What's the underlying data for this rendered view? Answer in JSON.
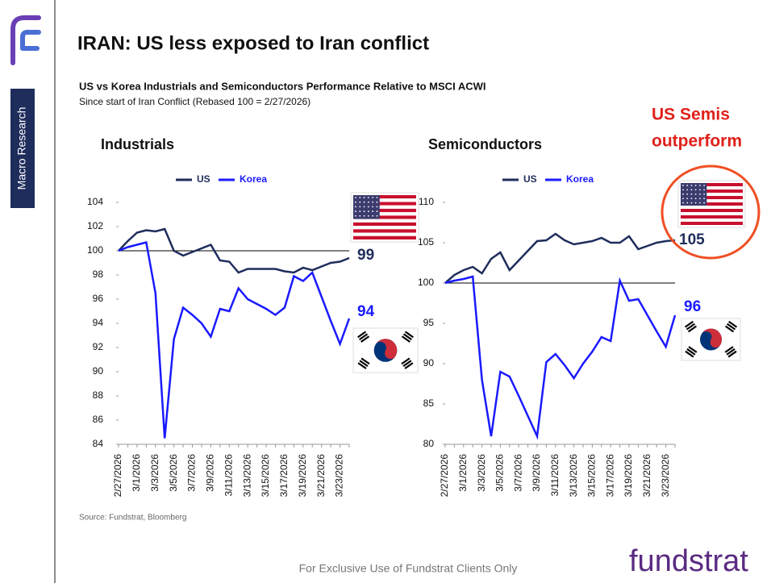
{
  "header": {
    "title": "IRAN: US less exposed to Iran conflict",
    "subtitle": "US vs Korea Industrials and Semiconductors Performance Relative to MSCI ACWI",
    "note": "Since start of Iran Conflict (Rebased 100 = 2/27/2026)"
  },
  "sidebar": "Macro Research",
  "callout": [
    "US Semis",
    "outperform"
  ],
  "source": "Source: Fundstrat, Bloomberg",
  "footer": "For Exclusive Use of Fundstrat Clients Only",
  "brand": "fundstrat",
  "chart_data": [
    {
      "type": "line",
      "title": "Industrials",
      "categories": [
        "2/27/2026",
        null,
        "3/1/2026",
        null,
        "3/3/2026",
        null,
        "3/5/2026",
        null,
        "3/7/2026",
        null,
        "3/9/2026",
        null,
        "3/11/2026",
        null,
        "3/13/2026",
        null,
        "3/15/2026",
        null,
        "3/17/2026",
        null,
        "3/19/2026",
        null,
        "3/21/2026",
        null,
        "3/23/2026",
        null
      ],
      "series": [
        {
          "name": "US",
          "color": "#1f2d5c",
          "values": [
            100,
            100.8,
            101.5,
            101.7,
            101.6,
            101.8,
            100,
            99.6,
            99.9,
            100.2,
            100.5,
            99.2,
            99.1,
            98.2,
            98.5,
            98.5,
            98.5,
            98.5,
            98.3,
            98.2,
            98.6,
            98.4,
            98.7,
            99.0,
            99.1,
            99.4
          ],
          "end_label": "99"
        },
        {
          "name": "Korea",
          "color": "#1a1aff",
          "values": [
            100,
            100.3,
            100.5,
            100.7,
            96.5,
            84.5,
            92.7,
            95.3,
            94.7,
            94.0,
            92.9,
            95.2,
            95.0,
            96.9,
            96.0,
            95.6,
            95.2,
            94.7,
            95.3,
            97.9,
            97.5,
            98.2,
            96.2,
            94.2,
            92.3,
            94.4
          ],
          "end_label": "94"
        }
      ],
      "ylim": [
        84,
        104
      ],
      "yticks": [
        84,
        86,
        88,
        90,
        92,
        94,
        96,
        98,
        100,
        102,
        104
      ],
      "hline": 100
    },
    {
      "type": "line",
      "title": "Semiconductors",
      "categories": [
        "2/27/2026",
        null,
        "3/1/2026",
        null,
        "3/3/2026",
        null,
        "3/5/2026",
        null,
        "3/7/2026",
        null,
        "3/9/2026",
        null,
        "3/11/2026",
        null,
        "3/13/2026",
        null,
        "3/15/2026",
        null,
        "3/17/2026",
        null,
        "3/19/2026",
        null,
        "3/21/2026",
        null,
        "3/23/2026",
        null
      ],
      "series": [
        {
          "name": "US",
          "color": "#1f2d5c",
          "values": [
            100,
            101,
            101.6,
            102,
            101.2,
            103,
            103.8,
            101.6,
            102.8,
            104,
            105.2,
            105.3,
            106.1,
            105.3,
            104.8,
            105,
            105.2,
            105.6,
            105,
            105,
            105.8,
            104.2,
            104.6,
            105,
            105.2,
            105.3
          ],
          "end_label": "105"
        },
        {
          "name": "Korea",
          "color": "#1a1aff",
          "values": [
            100,
            100.3,
            100.5,
            100.8,
            88,
            81,
            89,
            88.4,
            86,
            83.5,
            81,
            90.2,
            91.2,
            89.8,
            88.2,
            90,
            91.5,
            93.3,
            92.8,
            100.3,
            97.8,
            98,
            96,
            94,
            92.1,
            96.0
          ],
          "end_label": "96"
        }
      ],
      "ylim": [
        80,
        110
      ],
      "yticks": [
        80,
        85,
        90,
        95,
        100,
        105,
        110
      ],
      "hline": 100
    }
  ]
}
